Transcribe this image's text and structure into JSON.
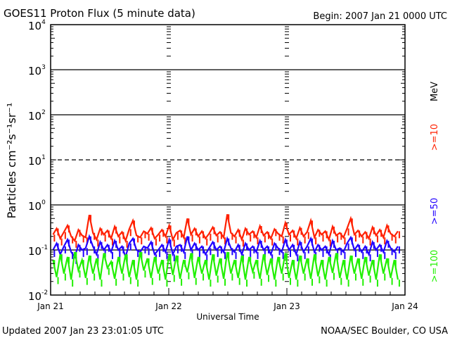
{
  "chart_data": {
    "type": "line",
    "title": "GOES11 Proton Flux (5 minute data)",
    "begin_label": "Begin: 2007 Jan 21 0000 UTC",
    "xlabel": "Universal Time",
    "ylabel": "Particles cm⁻²s⁻¹sr⁻¹",
    "x_ticks": [
      "Jan 21",
      "Jan 22",
      "Jan 23",
      "Jan 24"
    ],
    "x_range_days": [
      0,
      3
    ],
    "y_scale": "log",
    "ylim": [
      0.01,
      10000
    ],
    "y_ticks": [
      {
        "base": "10",
        "exp": "4"
      },
      {
        "base": "10",
        "exp": "3"
      },
      {
        "base": "10",
        "exp": "2"
      },
      {
        "base": "10",
        "exp": "1"
      },
      {
        "base": "10",
        "exp": "0"
      },
      {
        "base": "10",
        "exp": "-1"
      },
      {
        "base": "10",
        "exp": "-2"
      }
    ],
    "unit_label": "MeV",
    "series": [
      {
        "name": ">=10",
        "color": "#ff2000",
        "values": [
          0.22,
          0.3,
          0.18,
          0.25,
          0.35,
          0.2,
          0.16,
          0.28,
          0.21,
          0.19,
          0.6,
          0.24,
          0.17,
          0.3,
          0.22,
          0.27,
          0.18,
          0.33,
          0.2,
          0.25,
          0.16,
          0.29,
          0.45,
          0.21,
          0.19,
          0.26,
          0.23,
          0.31,
          0.18,
          0.22,
          0.28,
          0.2,
          0.35,
          0.17,
          0.24,
          0.27,
          0.19,
          0.5,
          0.22,
          0.3,
          0.2,
          0.26,
          0.18,
          0.23,
          0.32,
          0.21,
          0.25,
          0.19,
          0.62,
          0.24,
          0.2,
          0.28,
          0.17,
          0.3,
          0.22,
          0.26,
          0.19,
          0.34,
          0.21,
          0.25,
          0.18,
          0.29,
          0.23,
          0.2,
          0.4,
          0.22,
          0.27,
          0.18,
          0.31,
          0.2,
          0.25,
          0.45,
          0.19,
          0.28,
          0.22,
          0.26,
          0.17,
          0.33,
          0.21,
          0.24,
          0.19,
          0.3,
          0.5,
          0.22,
          0.27,
          0.2,
          0.25,
          0.18,
          0.32,
          0.21,
          0.28,
          0.19,
          0.35,
          0.23,
          0.2,
          0.26
        ]
      },
      {
        "name": ">=50",
        "color": "#2000ff",
        "values": [
          0.1,
          0.14,
          0.08,
          0.12,
          0.17,
          0.09,
          0.07,
          0.13,
          0.1,
          0.11,
          0.2,
          0.12,
          0.08,
          0.15,
          0.1,
          0.13,
          0.09,
          0.16,
          0.1,
          0.12,
          0.07,
          0.14,
          0.18,
          0.1,
          0.09,
          0.12,
          0.11,
          0.15,
          0.08,
          0.1,
          0.13,
          0.09,
          0.17,
          0.08,
          0.12,
          0.13,
          0.09,
          0.2,
          0.1,
          0.14,
          0.1,
          0.12,
          0.08,
          0.11,
          0.15,
          0.1,
          0.12,
          0.09,
          0.18,
          0.11,
          0.09,
          0.13,
          0.08,
          0.14,
          0.1,
          0.12,
          0.09,
          0.16,
          0.1,
          0.12,
          0.08,
          0.14,
          0.11,
          0.09,
          0.17,
          0.1,
          0.13,
          0.08,
          0.15,
          0.09,
          0.12,
          0.18,
          0.09,
          0.13,
          0.1,
          0.12,
          0.08,
          0.16,
          0.1,
          0.11,
          0.09,
          0.14,
          0.19,
          0.1,
          0.13,
          0.09,
          0.12,
          0.08,
          0.15,
          0.1,
          0.13,
          0.09,
          0.16,
          0.11,
          0.09,
          0.12
        ]
      },
      {
        "name": ">=100",
        "color": "#20f000",
        "values": [
          0.06,
          0.025,
          0.08,
          0.03,
          0.07,
          0.022,
          0.09,
          0.035,
          0.06,
          0.024,
          0.075,
          0.03,
          0.065,
          0.022,
          0.085,
          0.04,
          0.055,
          0.023,
          0.07,
          0.03,
          0.08,
          0.025,
          0.06,
          0.022,
          0.09,
          0.035,
          0.065,
          0.024,
          0.07,
          0.03,
          0.06,
          0.022,
          0.08,
          0.028,
          0.075,
          0.023,
          0.06,
          0.032,
          0.085,
          0.024,
          0.07,
          0.03,
          0.06,
          0.022,
          0.08,
          0.027,
          0.065,
          0.023,
          0.09,
          0.03,
          0.06,
          0.024,
          0.075,
          0.022,
          0.07,
          0.033,
          0.06,
          0.023,
          0.08,
          0.028,
          0.065,
          0.022,
          0.07,
          0.03,
          0.085,
          0.024,
          0.06,
          0.022,
          0.075,
          0.03,
          0.065,
          0.023,
          0.08,
          0.026,
          0.06,
          0.022,
          0.07,
          0.031,
          0.085,
          0.024,
          0.06,
          0.022,
          0.075,
          0.03,
          0.065,
          0.023,
          0.07,
          0.027,
          0.06,
          0.022,
          0.08,
          0.03,
          0.065,
          0.024,
          0.06,
          0.022
        ]
      }
    ]
  },
  "footer": {
    "updated": "Updated 2007 Jan 23 23:01:05 UTC",
    "credit": "NOAA/SEC Boulder, CO USA"
  }
}
